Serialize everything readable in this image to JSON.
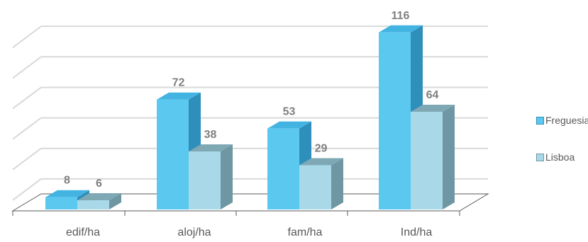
{
  "chart_data": {
    "type": "bar",
    "categories": [
      "edif/ha",
      "aloj/ha",
      "fam/ha",
      "Ind/ha"
    ],
    "series": [
      {
        "name": "Freguesia",
        "values": [
          8,
          72,
          53,
          116
        ],
        "color": "#5bc8f0",
        "side_color": "#2e8fba",
        "top_color": "#43b4e2"
      },
      {
        "name": "Lisboa",
        "values": [
          6,
          38,
          29,
          64
        ],
        "color": "#a9d9e8",
        "side_color": "#6f96a3",
        "top_color": "#7fa8b5"
      }
    ],
    "ylim": [
      0,
      120
    ],
    "grid": true,
    "gridline_color": "#d9d9d9",
    "label_color": "#7f7f7f",
    "legend_position": "right"
  }
}
